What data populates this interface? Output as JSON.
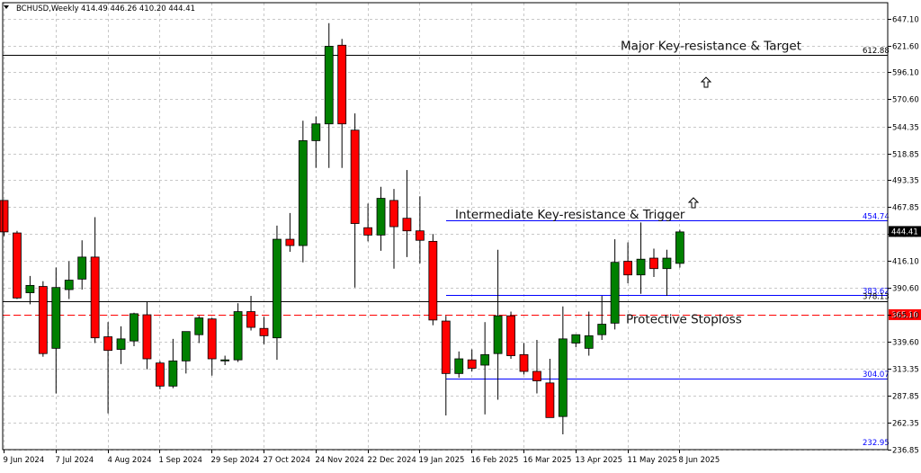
{
  "header": {
    "symbol": "BCHUSD,Weekly",
    "ohlc": "414.49 446.26 410.20 444.41"
  },
  "chart_data": {
    "type": "candlestick",
    "ylim": [
      236.85,
      660
    ],
    "yticks": [
      "647.10",
      "621.60",
      "596.10",
      "570.60",
      "544.35",
      "518.85",
      "493.35",
      "467.85",
      "442.35",
      "416.10",
      "390.60",
      "365.10",
      "339.60",
      "313.35",
      "287.85",
      "262.35",
      "236.85"
    ],
    "xticks": [
      "9 Jun 2024",
      "7 Jul 2024",
      "4 Aug 2024",
      "1 Sep 2024",
      "29 Sep 2024",
      "27 Oct 2024",
      "24 Nov 2024",
      "22 Dec 2024",
      "19 Jan 2025",
      "16 Feb 2025",
      "16 Mar 2025",
      "13 Apr 2025",
      "11 May 2025",
      "8 Jun 2025"
    ],
    "colors": {
      "bull": "#008000",
      "bear": "#ff0000",
      "wick": "#000000",
      "grid": "#c8c8c8",
      "level_blue": "#0000ff",
      "level_black": "#000000",
      "stop": "#ff0000"
    },
    "current_price": "444.41",
    "candles": [
      {
        "o": 474,
        "h": 474,
        "l": 440,
        "c": 444
      },
      {
        "o": 443,
        "h": 445,
        "l": 380,
        "c": 381
      },
      {
        "o": 386,
        "h": 402,
        "l": 375,
        "c": 393
      },
      {
        "o": 392,
        "h": 397,
        "l": 325,
        "c": 328
      },
      {
        "o": 333,
        "h": 410,
        "l": 290,
        "c": 391
      },
      {
        "o": 389,
        "h": 416,
        "l": 380,
        "c": 398
      },
      {
        "o": 399,
        "h": 436,
        "l": 389,
        "c": 420
      },
      {
        "o": 420,
        "h": 458,
        "l": 338,
        "c": 343
      },
      {
        "o": 344,
        "h": 358,
        "l": 271,
        "c": 331
      },
      {
        "o": 332,
        "h": 354,
        "l": 318,
        "c": 342
      },
      {
        "o": 340,
        "h": 367,
        "l": 335,
        "c": 366
      },
      {
        "o": 365,
        "h": 377,
        "l": 313,
        "c": 323
      },
      {
        "o": 319,
        "h": 321,
        "l": 294,
        "c": 297
      },
      {
        "o": 297,
        "h": 342,
        "l": 295,
        "c": 321
      },
      {
        "o": 321,
        "h": 346,
        "l": 309,
        "c": 349
      },
      {
        "o": 346,
        "h": 364,
        "l": 338,
        "c": 362
      },
      {
        "o": 361,
        "h": 362,
        "l": 307,
        "c": 323
      },
      {
        "o": 321,
        "h": 326,
        "l": 317,
        "c": 322
      },
      {
        "o": 322,
        "h": 376,
        "l": 320,
        "c": 368
      },
      {
        "o": 368,
        "h": 383,
        "l": 350,
        "c": 353
      },
      {
        "o": 352,
        "h": 363,
        "l": 337,
        "c": 345
      },
      {
        "o": 343,
        "h": 450,
        "l": 322,
        "c": 437
      },
      {
        "o": 437,
        "h": 462,
        "l": 425,
        "c": 431
      },
      {
        "o": 431,
        "h": 550,
        "l": 415,
        "c": 531
      },
      {
        "o": 531,
        "h": 554,
        "l": 505,
        "c": 547
      },
      {
        "o": 547,
        "h": 643,
        "l": 505,
        "c": 621
      },
      {
        "o": 622,
        "h": 628,
        "l": 505,
        "c": 547
      },
      {
        "o": 541,
        "h": 557,
        "l": 391,
        "c": 452
      },
      {
        "o": 448,
        "h": 471,
        "l": 435,
        "c": 441
      },
      {
        "o": 441,
        "h": 487,
        "l": 426,
        "c": 476
      },
      {
        "o": 474,
        "h": 485,
        "l": 409,
        "c": 449
      },
      {
        "o": 457,
        "h": 503,
        "l": 420,
        "c": 445
      },
      {
        "o": 445,
        "h": 478,
        "l": 414,
        "c": 436
      },
      {
        "o": 435,
        "h": 442,
        "l": 355,
        "c": 360
      },
      {
        "o": 359,
        "h": 364,
        "l": 269,
        "c": 309
      },
      {
        "o": 309,
        "h": 330,
        "l": 305,
        "c": 323
      },
      {
        "o": 322,
        "h": 332,
        "l": 311,
        "c": 314
      },
      {
        "o": 317,
        "h": 358,
        "l": 270,
        "c": 327
      },
      {
        "o": 328,
        "h": 427,
        "l": 284,
        "c": 364
      },
      {
        "o": 364,
        "h": 368,
        "l": 323,
        "c": 326
      },
      {
        "o": 327,
        "h": 338,
        "l": 308,
        "c": 311
      },
      {
        "o": 311,
        "h": 341,
        "l": 290,
        "c": 302
      },
      {
        "o": 300,
        "h": 323,
        "l": 267,
        "c": 267
      },
      {
        "o": 268,
        "h": 373,
        "l": 251,
        "c": 342
      },
      {
        "o": 338,
        "h": 345,
        "l": 334,
        "c": 346
      },
      {
        "o": 333,
        "h": 368,
        "l": 326,
        "c": 345
      },
      {
        "o": 346,
        "h": 383,
        "l": 341,
        "c": 356
      },
      {
        "o": 357,
        "h": 437,
        "l": 351,
        "c": 415
      },
      {
        "o": 416,
        "h": 434,
        "l": 395,
        "c": 403
      },
      {
        "o": 403,
        "h": 453,
        "l": 385,
        "c": 418
      },
      {
        "o": 419,
        "h": 428,
        "l": 401,
        "c": 409
      },
      {
        "o": 409,
        "h": 427,
        "l": 383,
        "c": 419
      },
      {
        "o": 414,
        "h": 446,
        "l": 410,
        "c": 444
      }
    ],
    "levels": [
      {
        "label": "612.88",
        "value": 612.88,
        "color": "#000000",
        "style": "solid",
        "span": "full"
      },
      {
        "label": "454.74",
        "value": 454.74,
        "color": "#0000ff",
        "style": "solid",
        "span": "partial"
      },
      {
        "label": "383.62",
        "value": 383.62,
        "color": "#0000ff",
        "style": "solid",
        "span": "partial"
      },
      {
        "label": "378.13",
        "value": 378.13,
        "color": "#000000",
        "style": "solid",
        "span": "full"
      },
      {
        "label": "365.10",
        "value": 365.1,
        "color": "#ff0000",
        "style": "dashed",
        "span": "full"
      },
      {
        "label": "304.07",
        "value": 304.07,
        "color": "#0000ff",
        "style": "solid",
        "span": "partial"
      },
      {
        "label": "232.95",
        "value": 232.95,
        "color": "#0000ff",
        "style": "solid",
        "span": "none"
      }
    ],
    "annotations": [
      {
        "text": "Major Key-resistance & Target",
        "value": 621.6
      },
      {
        "text": "Intermediate Key-resistance & Trigger",
        "value": 461
      },
      {
        "text": "Protective Stoploss",
        "value": 361
      }
    ]
  }
}
